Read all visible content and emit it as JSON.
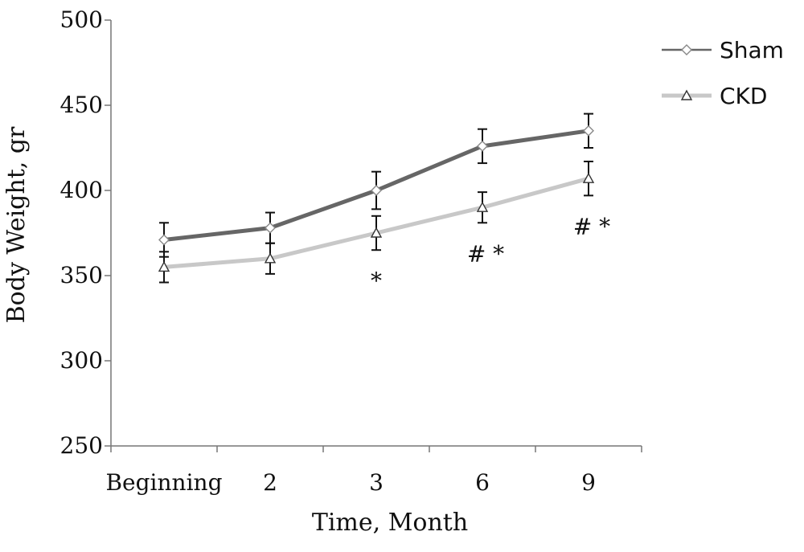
{
  "chart_data": {
    "type": "line",
    "xlabel": "Time, Month",
    "ylabel": "Body Weight, gr",
    "categories": [
      "Beginning",
      "2",
      "3",
      "6",
      "9"
    ],
    "ylim": [
      250,
      500
    ],
    "yticks": [
      "250",
      "300",
      "350",
      "400",
      "450",
      "500"
    ],
    "grid": false,
    "legend_position": "top-right",
    "series": [
      {
        "name": "Sham",
        "marker": "diamond",
        "color": "#666666",
        "values": [
          371,
          378,
          400,
          426,
          435
        ],
        "error": [
          10,
          9,
          11,
          10,
          10
        ]
      },
      {
        "name": "CKD",
        "marker": "triangle",
        "color": "#c8c8c8",
        "values": [
          355,
          360,
          375,
          390,
          407
        ],
        "error": [
          9,
          9,
          10,
          9,
          10
        ]
      }
    ],
    "annotations": [
      {
        "category": "3",
        "text": "*"
      },
      {
        "category": "6",
        "text": "# *"
      },
      {
        "category": "9",
        "text": "# *"
      }
    ]
  }
}
